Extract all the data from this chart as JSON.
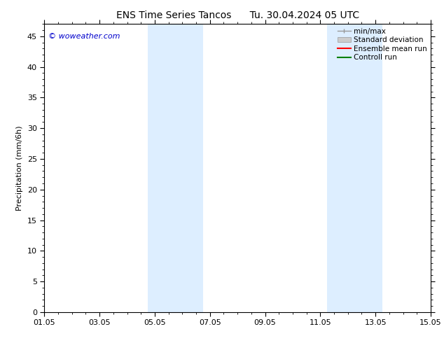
{
  "title_left": "ENS Time Series Tancos",
  "title_right": "Tu. 30.04.2024 05 UTC",
  "ylabel": "Precipitation (mm/6h)",
  "ylim": [
    0,
    47
  ],
  "yticks": [
    0,
    5,
    10,
    15,
    20,
    25,
    30,
    35,
    40,
    45
  ],
  "bg_color": "#ffffff",
  "plot_bg_color": "#ffffff",
  "shaded_band_color": "#ddeeff",
  "watermark": "© woweather.com",
  "watermark_color": "#0000cc",
  "legend_entries": [
    "min/max",
    "Standard deviation",
    "Ensemble mean run",
    "Controll run"
  ],
  "x_total_days": 14,
  "xtick_labels": [
    "01.05",
    "03.05",
    "05.05",
    "07.05",
    "09.05",
    "11.05",
    "13.05",
    "15.05"
  ],
  "xtick_positions_days": [
    0,
    2,
    4,
    6,
    8,
    10,
    12,
    14
  ],
  "shaded_regions": [
    {
      "x_start_day": 3.75,
      "x_end_day": 4.75
    },
    {
      "x_start_day": 4.75,
      "x_end_day": 5.75
    },
    {
      "x_start_day": 10.25,
      "x_end_day": 11.25
    },
    {
      "x_start_day": 11.25,
      "x_end_day": 12.25
    }
  ],
  "title_fontsize": 10,
  "tick_fontsize": 8,
  "label_fontsize": 8,
  "legend_fontsize": 7.5,
  "watermark_fontsize": 8
}
